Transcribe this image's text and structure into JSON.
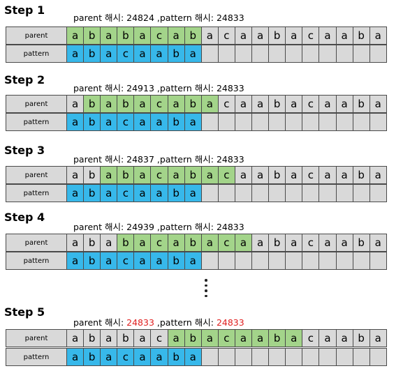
{
  "labels": {
    "parent": "parent",
    "pattern": "pattern"
  },
  "parent_chars": [
    "a",
    "b",
    "a",
    "b",
    "a",
    "c",
    "a",
    "b",
    "a",
    "c",
    "a",
    "a",
    "b",
    "a",
    "c",
    "a",
    "a",
    "b",
    "a"
  ],
  "pattern_chars": [
    "a",
    "b",
    "a",
    "c",
    "a",
    "a",
    "b",
    "a"
  ],
  "colors": {
    "match": "#a3d48a",
    "pattern": "#37b8ea",
    "empty": "#d9d9d9",
    "highlight": "#e02020"
  },
  "steps": [
    {
      "title": "Step 1",
      "parent_prefix": "parent 해시: ",
      "parent_hash": "24824",
      "pattern_prefix": " ,pattern 해시: ",
      "pattern_hash": "24833",
      "window_start": 0,
      "highlight": false
    },
    {
      "title": "Step 2",
      "parent_prefix": "parent 해시: ",
      "parent_hash": "24913",
      "pattern_prefix": " ,pattern 해시: ",
      "pattern_hash": "24833",
      "window_start": 1,
      "highlight": false
    },
    {
      "title": "Step 3",
      "parent_prefix": "parent 해시: ",
      "parent_hash": "24837",
      "pattern_prefix": " ,pattern 해시: ",
      "pattern_hash": "24833",
      "window_start": 2,
      "highlight": false
    },
    {
      "title": "Step 4",
      "parent_prefix": "parent 해시: ",
      "parent_hash": "24939",
      "pattern_prefix": " ,pattern 해시: ",
      "pattern_hash": "24833",
      "window_start": 3,
      "highlight": false
    },
    {
      "title": "Step 5",
      "parent_prefix": "parent 해시: ",
      "parent_hash": "24833",
      "pattern_prefix": " ,pattern 해시: ",
      "pattern_hash": "24833",
      "window_start": 6,
      "highlight": true
    }
  ]
}
